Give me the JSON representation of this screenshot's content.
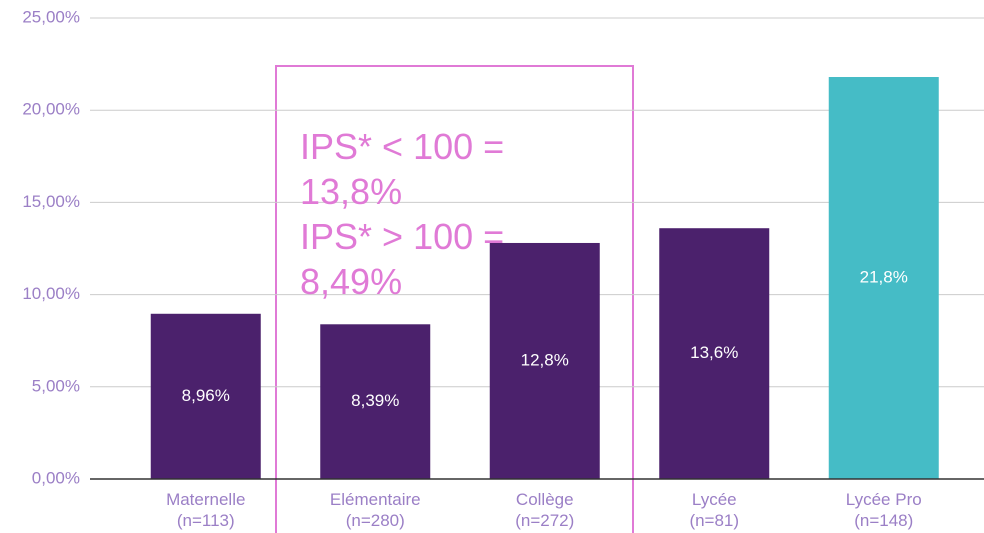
{
  "chart_data": {
    "type": "bar",
    "categories": [
      "Maternelle\n(n=113)",
      "Elémentaire\n(n=280)",
      "Collège\n(n=272)",
      "Lycée\n(n=81)",
      "Lycée Pro\n(n=148)"
    ],
    "values": [
      8.96,
      8.39,
      12.8,
      13.6,
      21.8
    ],
    "value_labels": [
      "8,96%",
      "8,39%",
      "12,8%",
      "13,6%",
      "21,8%"
    ],
    "colors": [
      "#4b216c",
      "#4b216c",
      "#4b216c",
      "#4b216c",
      "#45bcc6"
    ],
    "ylim": [
      0,
      25
    ],
    "yticks": [
      {
        "value": 0,
        "label": "0,00%"
      },
      {
        "value": 5,
        "label": "5,00%"
      },
      {
        "value": 10,
        "label": "10,00%"
      },
      {
        "value": 15,
        "label": "15,00%"
      },
      {
        "value": 20,
        "label": "20,00%"
      },
      {
        "value": 25,
        "label": "25,00%"
      }
    ],
    "grid": true,
    "annotations": [
      "IPS* < 100 = 13,8%",
      "IPS* > 100 = 8,49%"
    ]
  }
}
